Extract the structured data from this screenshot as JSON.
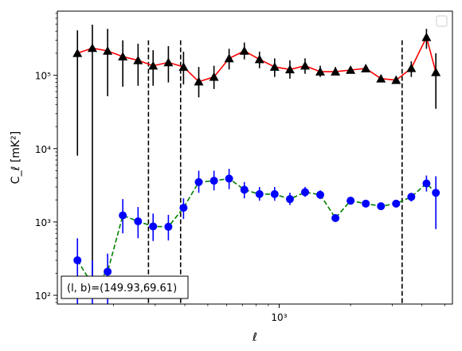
{
  "chart_data": {
    "type": "scatter",
    "xlabel": "ℓ",
    "ylabel": "C_ℓ  [mK²]",
    "xscale": "log",
    "yscale": "log",
    "xlim": [
      116,
      5380
    ],
    "ylim": [
      76,
      750000
    ],
    "grid": false,
    "legend": "upper right, empty box",
    "x_ticks": [
      {
        "value": 1000,
        "label": "10³"
      }
    ],
    "y_ticks": [
      {
        "value": 100,
        "label": "10²"
      },
      {
        "value": 1000,
        "label": "10³"
      },
      {
        "value": 10000,
        "label": "10⁴"
      },
      {
        "value": 100000,
        "label": "10⁵"
      }
    ],
    "vlines": [
      281,
      384,
      3300
    ],
    "annotation": "(l, b)=(149.93,69.61)",
    "x": [
      141,
      163,
      189,
      219,
      254,
      294,
      341,
      395,
      458,
      531,
      615,
      713,
      826,
      957,
      1110,
      1286,
      1490,
      1727,
      2001,
      2319,
      2687,
      3114,
      3608,
      4181,
      4580
    ],
    "series": [
      {
        "color": "#000000",
        "line_color": "#ff0000",
        "marker": "triangle",
        "values": [
          200000,
          235000,
          215000,
          180000,
          160000,
          135000,
          150000,
          130000,
          82000,
          95000,
          170000,
          215000,
          165000,
          130000,
          120000,
          135000,
          112000,
          112000,
          118000,
          124000,
          90000,
          86000,
          125000,
          330000,
          110000
        ],
        "err_low": [
          8000,
          100,
          52000,
          70000,
          72000,
          72000,
          80000,
          75000,
          50000,
          65000,
          120000,
          165000,
          125000,
          95000,
          90000,
          105000,
          95000,
          100000,
          107000,
          112000,
          80000,
          77000,
          95000,
          230000,
          35000
        ],
        "err_high": [
          410000,
          490000,
          430000,
          300000,
          270000,
          220000,
          250000,
          210000,
          130000,
          135000,
          230000,
          280000,
          210000,
          170000,
          160000,
          170000,
          135000,
          130000,
          130000,
          138000,
          100000,
          95000,
          155000,
          430000,
          200000
        ]
      },
      {
        "color": "#0000ff",
        "line_color": "#008000",
        "marker": "circle",
        "values": [
          300,
          140,
          210,
          1230,
          1020,
          870,
          860,
          1560,
          3500,
          3650,
          3900,
          2750,
          2400,
          2400,
          2050,
          2550,
          2350,
          1130,
          1950,
          1780,
          1640,
          1780,
          2200,
          3350,
          2500
        ],
        "err_low": [
          60,
          60,
          60,
          700,
          600,
          550,
          560,
          1100,
          2500,
          2700,
          2800,
          2100,
          1950,
          1950,
          1700,
          2200,
          2050,
          1000,
          1800,
          1650,
          1530,
          1650,
          1900,
          2600,
          800
        ],
        "err_high": [
          600,
          300,
          370,
          2050,
          1600,
          1300,
          1250,
          2100,
          5000,
          5000,
          5300,
          3500,
          3000,
          3000,
          2500,
          3000,
          2700,
          1280,
          2150,
          1920,
          1760,
          1920,
          2500,
          4300,
          4200
        ]
      }
    ]
  }
}
